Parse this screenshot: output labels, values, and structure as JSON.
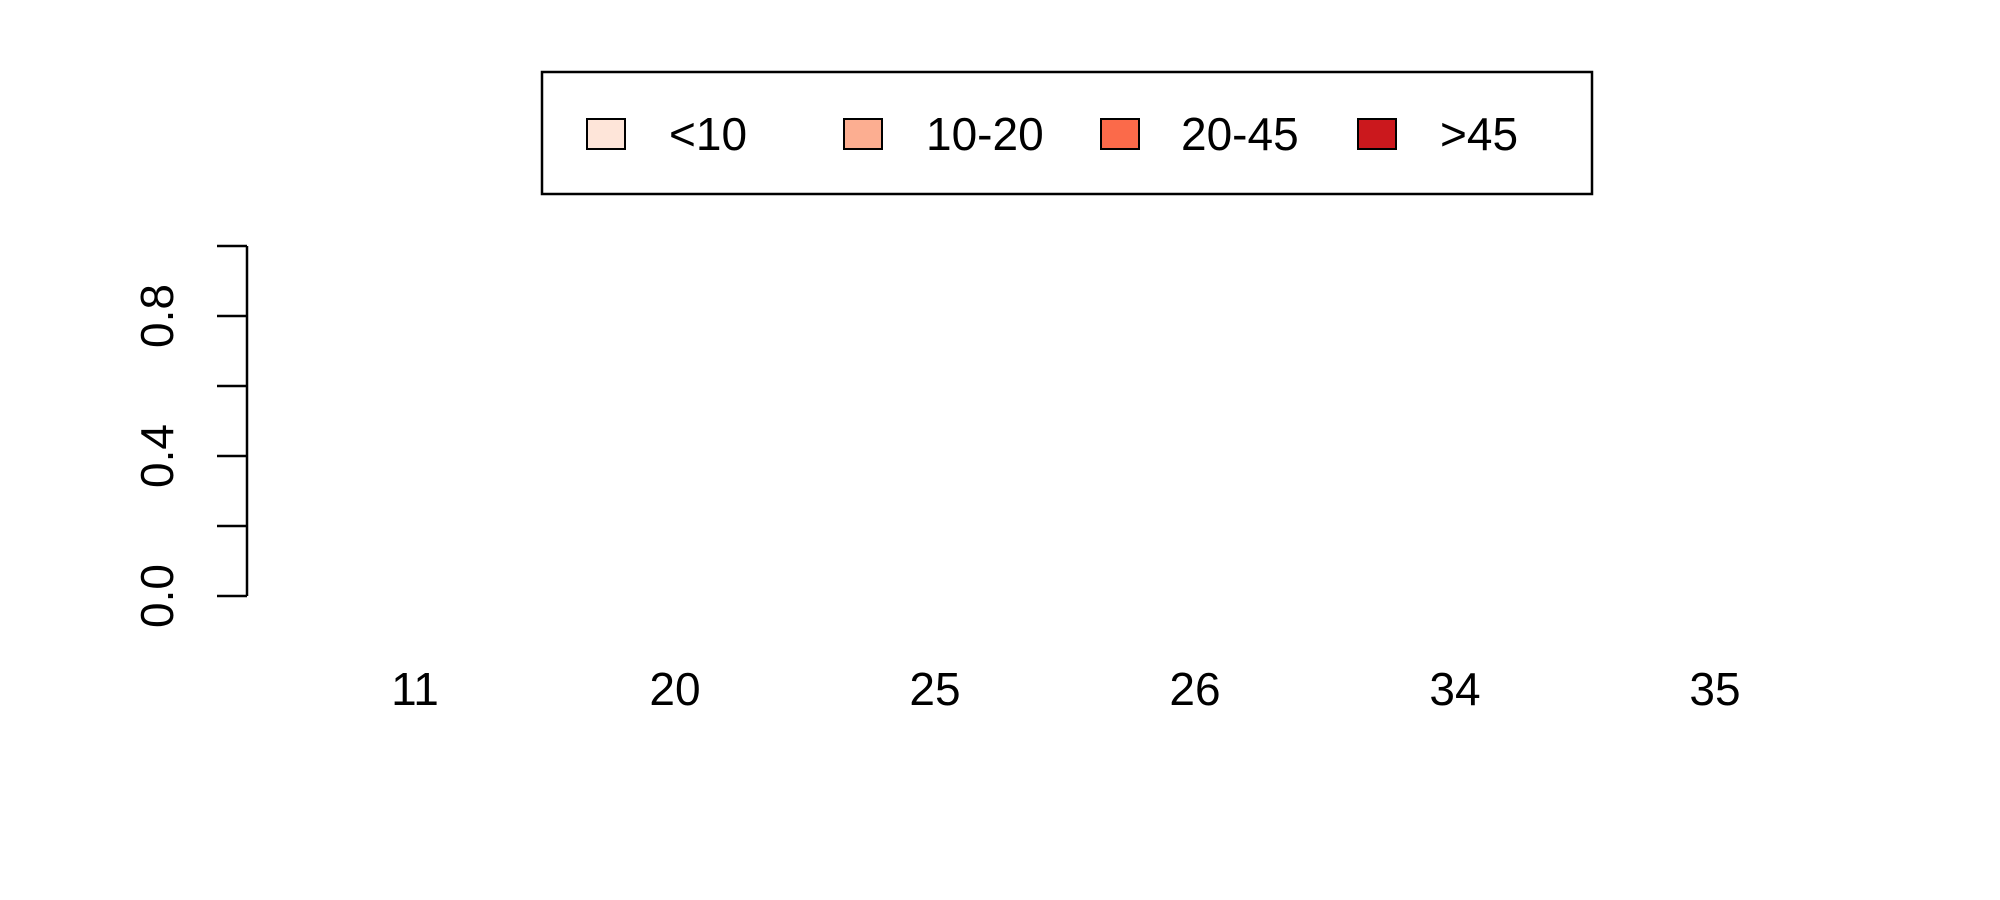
{
  "chart_data": {
    "type": "bar",
    "categories": [
      "11",
      "20",
      "25",
      "26",
      "34",
      "35"
    ],
    "series": [],
    "ylim": [
      0,
      1
    ],
    "y_ticks": [
      0.0,
      0.2,
      0.4,
      0.6,
      0.8,
      1.0
    ],
    "y_tick_labels": [
      "0.0",
      "0.4",
      "0.8"
    ],
    "grid": false,
    "legend": {
      "placement": "top-center",
      "entries": [
        {
          "label": "<10",
          "color": "#fee5d9"
        },
        {
          "label": "10-20",
          "color": "#fcae91"
        },
        {
          "label": "20-45",
          "color": "#fb6a4a"
        },
        {
          "label": ">45",
          "color": "#cb181d"
        }
      ]
    }
  }
}
